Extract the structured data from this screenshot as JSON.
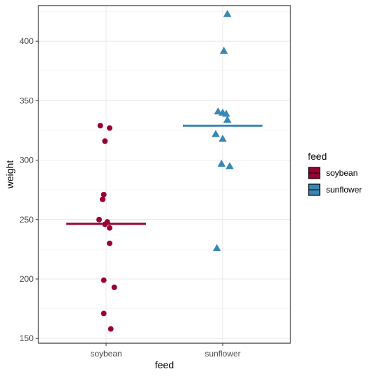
{
  "chart_data": {
    "type": "scatter",
    "xlabel": "feed",
    "ylabel": "weight",
    "categories": [
      "soybean",
      "sunflower"
    ],
    "ylim": [
      146,
      430
    ],
    "yticks": [
      150,
      200,
      250,
      300,
      350,
      400
    ],
    "grid": true,
    "legend": {
      "title": "feed",
      "position": "right"
    },
    "series": [
      {
        "name": "soybean",
        "category": "soybean",
        "color": "#990033",
        "shape": "circle",
        "values": [
          329,
          327,
          316,
          271,
          267,
          250,
          248,
          246,
          243,
          230,
          199,
          193,
          171,
          158
        ],
        "jitter": [
          -0.05,
          0.03,
          -0.01,
          -0.02,
          -0.03,
          -0.06,
          0.01,
          -0.01,
          0.03,
          0.03,
          -0.02,
          0.07,
          -0.02,
          0.04
        ],
        "mean": 246.4
      },
      {
        "name": "sunflower",
        "category": "sunflower",
        "color": "#3A87B5",
        "shape": "triangle",
        "values": [
          423,
          392,
          341,
          340,
          339,
          334,
          322,
          318,
          297,
          295,
          226
        ],
        "jitter": [
          0.04,
          0.01,
          -0.04,
          0.0,
          0.03,
          0.04,
          -0.06,
          0.0,
          -0.01,
          0.06,
          -0.05
        ],
        "mean": 328.9
      }
    ]
  }
}
